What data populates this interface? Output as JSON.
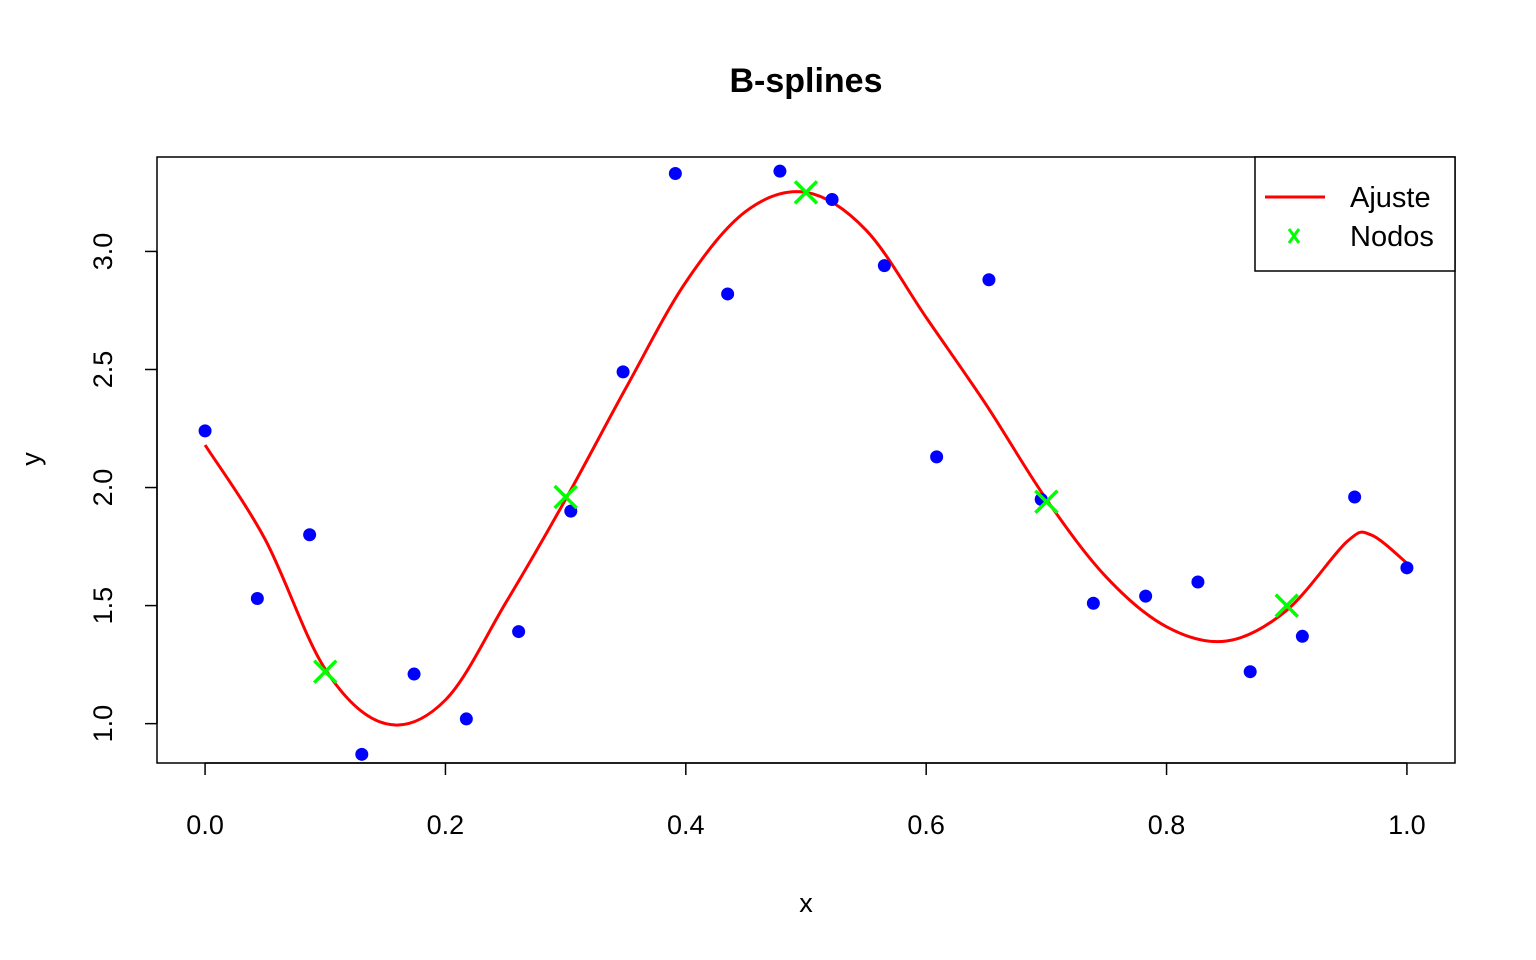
{
  "chart_data": {
    "type": "scatter",
    "title": "B-splines",
    "xlabel": "x",
    "ylabel": "y",
    "xlim": [
      -0.04,
      1.04
    ],
    "ylim": [
      0.8333,
      3.4
    ],
    "xticks": [
      0.0,
      0.2,
      0.4,
      0.6,
      0.8,
      1.0
    ],
    "xtick_labels": [
      "0.0",
      "0.2",
      "0.4",
      "0.6",
      "0.8",
      "1.0"
    ],
    "yticks": [
      1.0,
      1.5,
      2.0,
      2.5,
      3.0
    ],
    "ytick_labels": [
      "1.0",
      "1.5",
      "2.0",
      "2.5",
      "3.0"
    ],
    "grid": false,
    "legend": {
      "position": "top-right",
      "entries": [
        {
          "label": "Ajuste",
          "symbol": "line",
          "color": "#ff0000"
        },
        {
          "label": "Nodos",
          "symbol": "x",
          "color": "#00ff00"
        }
      ]
    },
    "points": {
      "color": "#0000ff",
      "x": [
        0.0,
        0.0435,
        0.087,
        0.1304,
        0.1739,
        0.2174,
        0.2609,
        0.3043,
        0.3478,
        0.3913,
        0.4348,
        0.4783,
        0.5217,
        0.5652,
        0.6087,
        0.6522,
        0.6957,
        0.7391,
        0.7826,
        0.8261,
        0.8696,
        0.913,
        0.9565,
        1.0
      ],
      "y": [
        2.24,
        1.53,
        1.8,
        0.87,
        1.21,
        1.02,
        1.39,
        1.9,
        2.49,
        3.33,
        2.82,
        3.34,
        3.22,
        2.94,
        2.13,
        2.88,
        1.95,
        1.51,
        1.54,
        1.6,
        1.22,
        1.37,
        1.96,
        1.66
      ]
    },
    "fit": {
      "name": "Ajuste",
      "color": "#ff0000",
      "x": [
        0.0,
        0.05,
        0.1,
        0.15,
        0.2,
        0.25,
        0.3,
        0.35,
        0.4,
        0.45,
        0.5,
        0.55,
        0.6,
        0.65,
        0.7,
        0.75,
        0.8,
        0.85,
        0.9,
        0.95,
        0.97,
        1.0
      ],
      "y": [
        2.18,
        1.78,
        1.23,
        1.0,
        1.1,
        1.51,
        1.95,
        2.42,
        2.87,
        3.17,
        3.25,
        3.09,
        2.72,
        2.35,
        1.95,
        1.62,
        1.41,
        1.35,
        1.48,
        1.77,
        1.8,
        1.68
      ]
    },
    "knots": {
      "name": "Nodos",
      "color": "#00ff00",
      "x": [
        0.1,
        0.3,
        0.5,
        0.7,
        0.9
      ],
      "y": [
        1.22,
        1.96,
        3.25,
        1.94,
        1.5
      ]
    }
  }
}
